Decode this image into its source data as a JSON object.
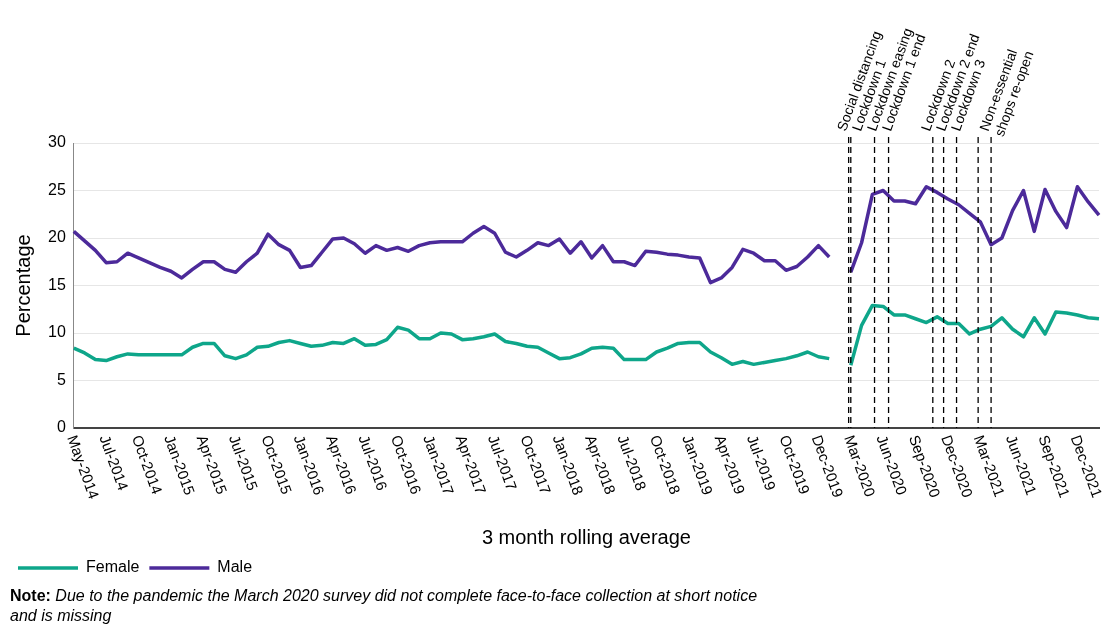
{
  "chart_data": {
    "type": "line",
    "xlabel": "3 month rolling average",
    "ylabel": "Percentage",
    "categories": [
      "May-2014",
      null,
      null,
      "Jul-2014",
      null,
      null,
      "Oct-2014",
      null,
      null,
      "Jan-2015",
      null,
      null,
      "Apr-2015",
      null,
      null,
      "Jul-2015",
      null,
      null,
      "Oct-2015",
      null,
      null,
      "Jan-2016",
      null,
      null,
      "Apr-2016",
      null,
      null,
      "Jul-2016",
      null,
      null,
      "Oct-2016",
      null,
      null,
      "Jan-2017",
      null,
      null,
      "Apr-2017",
      null,
      null,
      "Jul-2017",
      null,
      null,
      "Oct-2017",
      null,
      null,
      "Jan-2018",
      null,
      null,
      "Apr-2018",
      null,
      null,
      "Jul-2018",
      null,
      null,
      "Oct-2018",
      null,
      null,
      "Jan-2019",
      null,
      null,
      "Apr-2019",
      null,
      null,
      "Jul-2019",
      null,
      null,
      "Oct-2019",
      null,
      null,
      "Dec-2019",
      null,
      null,
      "Mar-2020",
      null,
      null,
      "Jun-2020",
      null,
      null,
      "Sep-2020",
      null,
      null,
      "Dec-2020",
      null,
      null,
      "Mar-2021",
      null,
      null,
      "Jun-2021",
      null,
      null,
      "Sep-2021",
      null,
      null,
      "Dec-2021",
      null,
      null
    ],
    "series": [
      {
        "name": "Female",
        "color": "#0ea68a",
        "values": [
          8.4,
          7.9,
          7.2,
          7.1,
          7.5,
          7.8,
          7.7,
          7.7,
          7.7,
          7.7,
          7.7,
          8.5,
          8.9,
          8.9,
          7.6,
          7.3,
          7.7,
          8.5,
          8.6,
          9.0,
          9.2,
          8.9,
          8.6,
          8.7,
          9.0,
          8.9,
          9.4,
          8.7,
          8.8,
          9.3,
          10.6,
          10.3,
          9.4,
          9.4,
          10.0,
          9.9,
          9.3,
          9.4,
          9.6,
          9.9,
          9.1,
          8.9,
          8.6,
          8.5,
          7.9,
          7.3,
          7.4,
          7.8,
          8.4,
          8.5,
          8.4,
          7.2,
          7.2,
          7.2,
          8.0,
          8.4,
          8.9,
          9.0,
          9.0,
          8.0,
          7.4,
          6.7,
          7.0,
          6.7,
          6.9,
          7.1,
          7.3,
          7.6,
          8.0,
          7.5,
          7.3,
          null,
          6.6,
          10.8,
          12.9,
          12.8,
          11.9,
          11.9,
          11.5,
          11.1,
          11.7,
          11.0,
          11.0,
          9.9,
          10.4,
          10.7,
          11.6,
          10.4,
          9.6,
          11.6,
          9.9,
          12.2,
          12.1,
          11.9,
          11.6,
          11.5
        ]
      },
      {
        "name": "Male",
        "color": "#4c2a9a",
        "values": [
          20.7,
          19.7,
          18.7,
          17.4,
          17.5,
          18.4,
          17.9,
          17.4,
          16.9,
          16.5,
          15.8,
          16.7,
          17.5,
          17.5,
          16.7,
          16.4,
          17.5,
          18.4,
          20.4,
          19.3,
          18.7,
          16.9,
          17.1,
          18.5,
          19.9,
          20.0,
          19.4,
          18.4,
          19.2,
          18.7,
          19.0,
          18.6,
          19.2,
          19.5,
          19.6,
          19.6,
          19.6,
          20.5,
          21.2,
          20.5,
          18.5,
          18.0,
          18.7,
          19.5,
          19.2,
          19.9,
          18.4,
          19.6,
          17.9,
          19.2,
          17.5,
          17.5,
          17.1,
          18.6,
          18.5,
          18.3,
          18.2,
          18.0,
          17.9,
          15.3,
          15.8,
          16.9,
          18.8,
          18.4,
          17.6,
          17.6,
          16.6,
          17.0,
          18.0,
          19.2,
          18.0,
          null,
          16.4,
          19.5,
          24.6,
          25.0,
          23.9,
          23.9,
          23.6,
          25.4,
          24.8,
          24.1,
          23.5,
          22.6,
          21.7,
          19.3,
          20.0,
          22.9,
          25.0,
          20.7,
          25.1,
          22.8,
          21.1,
          25.4,
          23.8,
          22.4
        ]
      }
    ],
    "ylim": [
      0,
      30
    ],
    "yticks": [
      0,
      5,
      10,
      15,
      20,
      25,
      30
    ],
    "grid": "y",
    "legend": "bottom left",
    "marker": "none",
    "line_style": "solid",
    "annotations": [
      "Social distancing",
      "Lockdown 1",
      "Lockdown easing",
      "Lockdown 1 end",
      "Lockdown 2",
      "Lockdown 2 end",
      "Lockdown 3",
      "Non-essential shops re-open",
      "Note: Due to the pandemic the March 2020 survey did not complete face-to-face collection at short notice and is missing"
    ]
  }
}
